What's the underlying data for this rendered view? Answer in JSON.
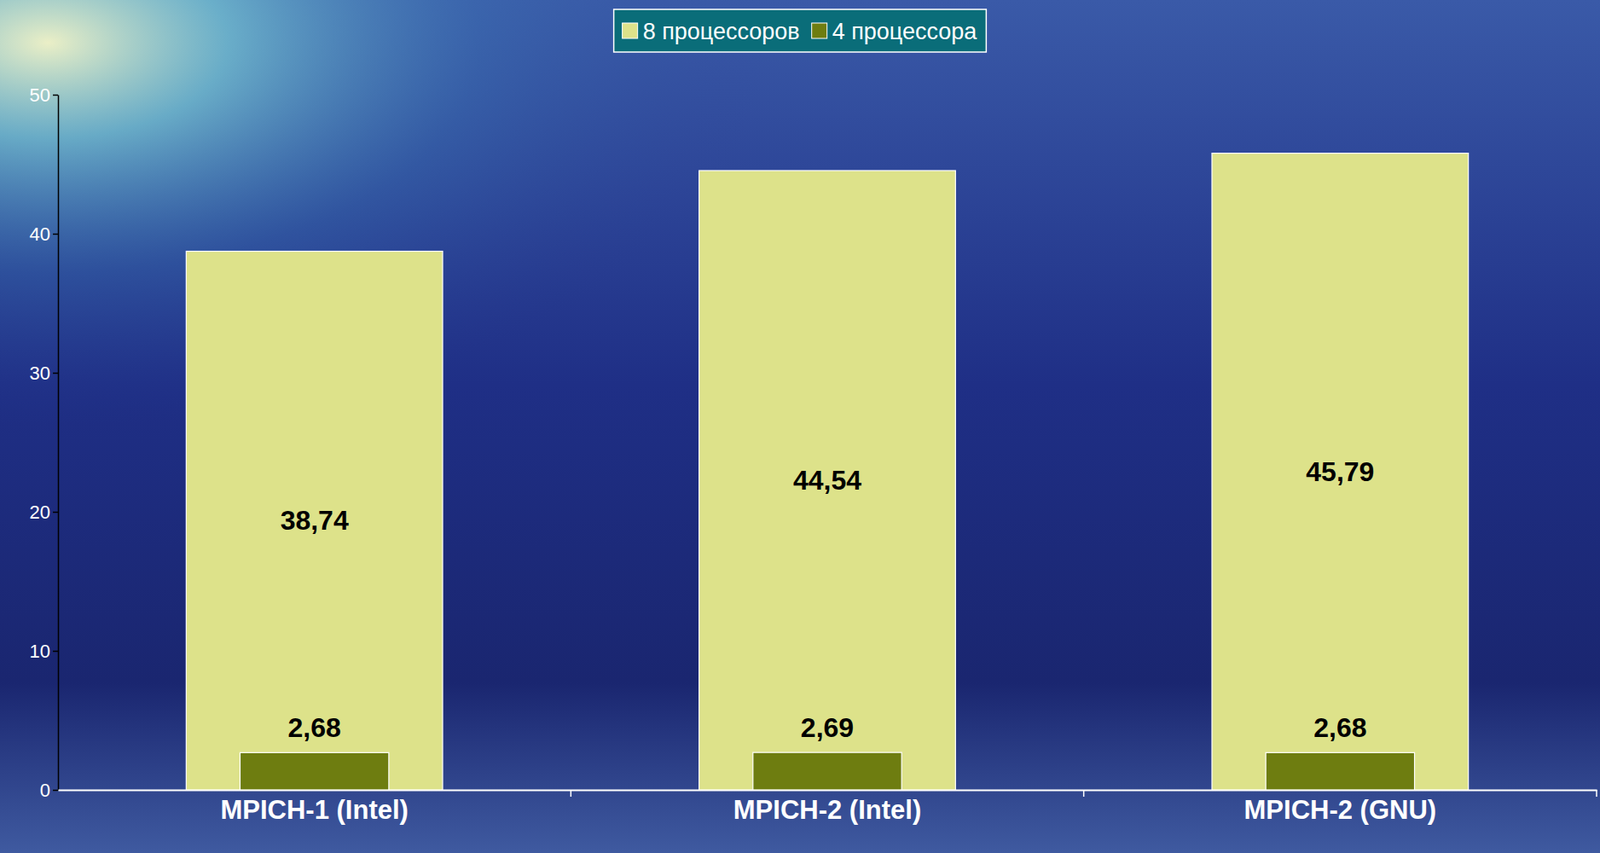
{
  "chart_data": {
    "type": "bar",
    "categories": [
      "MPICH-1 (Intel)",
      "MPICH-2 (Intel)",
      "MPICH-2 (GNU)"
    ],
    "series": [
      {
        "name": "8 процессоров",
        "color": "#dde28a",
        "values": [
          38.74,
          44.54,
          45.79
        ],
        "value_labels": [
          "38,74",
          "44,54",
          "45,79"
        ]
      },
      {
        "name": "4 процессора",
        "color": "#6e7d10",
        "values": [
          2.68,
          2.69,
          2.68
        ],
        "value_labels": [
          "2,68",
          "2,69",
          "2,68"
        ]
      }
    ],
    "ylim": [
      0,
      50
    ],
    "yticks": [
      0,
      10,
      20,
      30,
      40,
      50
    ],
    "grid": false,
    "legend": "top",
    "data_labels": true
  }
}
